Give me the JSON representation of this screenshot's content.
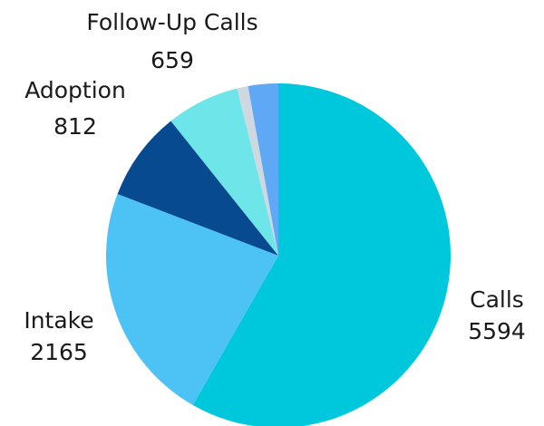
{
  "chart_data": {
    "type": "pie",
    "categories": [
      "Calls",
      "Intake",
      "Adoption",
      "Follow-Up Calls",
      null,
      null
    ],
    "values": [
      5594,
      2165,
      812,
      659,
      100,
      270
    ],
    "colors": [
      "#00c8dc",
      "#4dc3f5",
      "#074a8f",
      "#6ee5e8",
      "#cfd8e0",
      "#5fa8f5"
    ]
  }
}
